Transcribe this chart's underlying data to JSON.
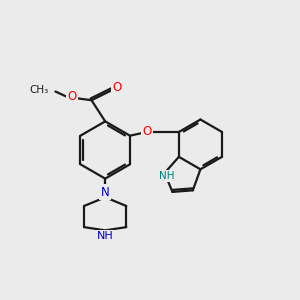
{
  "background_color": "#ebebeb",
  "bond_color": "#1a1a1a",
  "O_color": "#ff0000",
  "N_color": "#0000cc",
  "NH_color": "#008080",
  "figsize": [
    3.0,
    3.0
  ],
  "dpi": 100,
  "xlim": [
    0,
    12
  ],
  "ylim": [
    0,
    12
  ]
}
